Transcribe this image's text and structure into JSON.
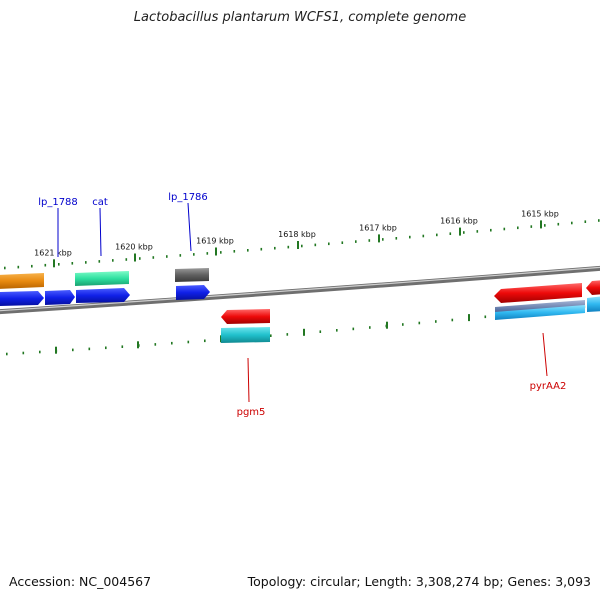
{
  "title": "Lactobacillus plantarum WCFS1, complete genome",
  "footer": {
    "accession": "Accession: NC_004567",
    "summary": "Topology: circular; Length: 3,308,274 bp; Genes: 3,093"
  },
  "colors": {
    "forward_label": "#0000cc",
    "reverse_label": "#cc0000",
    "tick": "#227722",
    "backbone": "#888888"
  },
  "ticks": [
    {
      "label": "1621 kbp"
    },
    {
      "label": "1620 kbp"
    },
    {
      "label": "1619 kbp"
    },
    {
      "label": "1618 kbp"
    },
    {
      "label": "1617 kbp"
    },
    {
      "label": "1616 kbp"
    },
    {
      "label": "1615 kbp"
    }
  ],
  "gene_labels": [
    {
      "name": "lp_1788",
      "strand": "forward"
    },
    {
      "name": "cat",
      "strand": "forward"
    },
    {
      "name": "lp_1786",
      "strand": "forward"
    },
    {
      "name": "pgm5",
      "strand": "reverse"
    },
    {
      "name": "pyrAA2",
      "strand": "reverse"
    }
  ]
}
